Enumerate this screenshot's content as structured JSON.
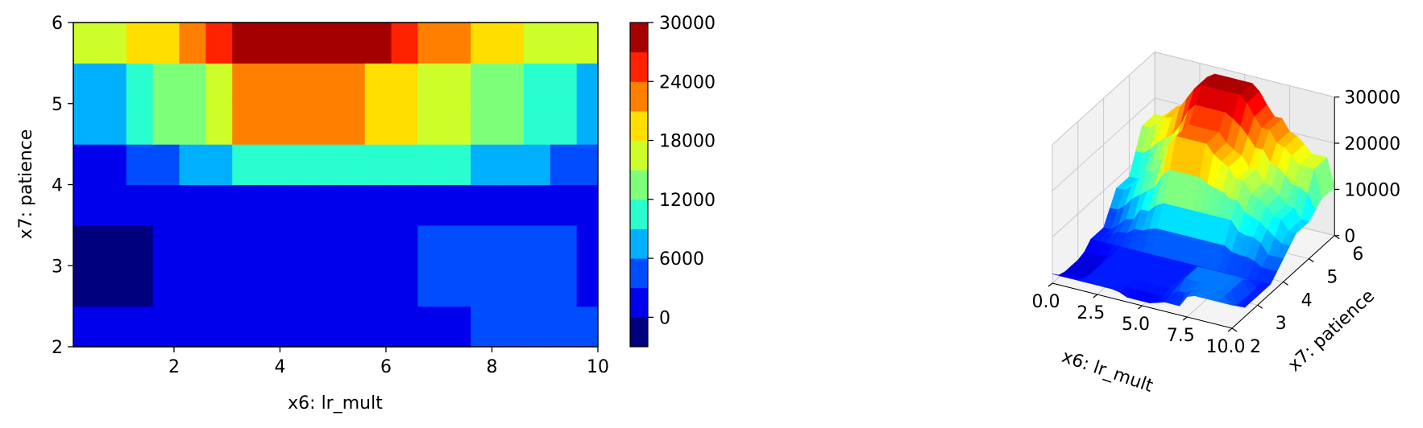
{
  "chart_data": [
    {
      "type": "heatmap",
      "subtype": "filled-contour",
      "xlabel": "x6: lr_mult",
      "ylabel": "x7: patience",
      "xlim": [
        0.1,
        10
      ],
      "ylim": [
        2,
        6
      ],
      "xticks": [
        "2",
        "4",
        "6",
        "8",
        "10"
      ],
      "yticks": [
        "2",
        "3",
        "4",
        "5",
        "6"
      ],
      "colormap": "jet",
      "colorbar": {
        "levels": [
          -3000,
          0,
          3000,
          6000,
          9000,
          12000,
          15000,
          18000,
          21000,
          24000,
          27000,
          30000
        ],
        "colors": [
          "#00007f",
          "#0000ed",
          "#004cff",
          "#00b0ff",
          "#29ffce",
          "#7dff7a",
          "#cefe29",
          "#ffde00",
          "#ff7f00",
          "#ff2100",
          "#a50000"
        ],
        "ticks": [
          "0",
          "6000",
          "12000",
          "18000",
          "24000",
          "30000"
        ]
      },
      "x": [
        0.1,
        0.6,
        1.1,
        1.6,
        2.1,
        2.6,
        3.1,
        3.6,
        4.1,
        4.6,
        5.1,
        5.6,
        6.1,
        6.6,
        7.1,
        7.6,
        8.1,
        8.6,
        9.1,
        9.6,
        10
      ],
      "y": [
        2,
        2.5,
        3,
        3.5,
        4,
        4.5,
        5,
        5.5,
        6
      ],
      "z": [
        [
          2000,
          2000,
          2000,
          2000,
          2000,
          2000,
          2000,
          2000,
          1000,
          1000,
          1000,
          1000,
          2000,
          2000,
          2000,
          5000,
          5000,
          5000,
          5000,
          5000,
          5000
        ],
        [
          -1000,
          -1000,
          -1000,
          2000,
          2000,
          2000,
          2000,
          2000,
          2000,
          2000,
          2000,
          2000,
          2000,
          5000,
          5000,
          5000,
          5000,
          5000,
          5000,
          2000,
          2000
        ],
        [
          -1000,
          -1000,
          -1000,
          2000,
          2000,
          2000,
          2000,
          2000,
          2000,
          2000,
          2000,
          2000,
          2000,
          5000,
          5000,
          5000,
          5000,
          5000,
          5000,
          2000,
          2000
        ],
        [
          2000,
          2000,
          2000,
          2000,
          2000,
          2000,
          2000,
          2000,
          2000,
          2000,
          2000,
          2000,
          2000,
          2000,
          2000,
          2000,
          2000,
          2000,
          2000,
          2000,
          2000
        ],
        [
          2000,
          2000,
          5000,
          5000,
          8000,
          8000,
          10500,
          10500,
          10500,
          10500,
          10500,
          10500,
          10500,
          10500,
          10500,
          8000,
          8000,
          8000,
          5000,
          5000,
          5000
        ],
        [
          8000,
          8000,
          10500,
          13500,
          13500,
          16500,
          22500,
          22500,
          22500,
          22500,
          22500,
          19500,
          19500,
          16500,
          16500,
          13500,
          13500,
          10500,
          10500,
          8000,
          8000
        ],
        [
          8000,
          8000,
          10500,
          13500,
          13500,
          16500,
          22500,
          22500,
          22500,
          22500,
          22500,
          19500,
          19500,
          16500,
          16500,
          13500,
          13500,
          10500,
          10500,
          8000,
          8000
        ],
        [
          16500,
          16500,
          19500,
          19500,
          22500,
          25500,
          28500,
          28500,
          28500,
          28500,
          28500,
          28500,
          25500,
          22500,
          22500,
          19500,
          19500,
          16500,
          16500,
          16500,
          10500
        ],
        [
          16500,
          16500,
          19500,
          19500,
          22500,
          25500,
          28500,
          28500,
          28500,
          28500,
          28500,
          28500,
          25500,
          22500,
          22500,
          19500,
          19500,
          16500,
          16500,
          16500,
          10500
        ]
      ]
    },
    {
      "type": "surface3d",
      "xlabel": "x6: lr_mult",
      "ylabel": "x7: patience",
      "zlabel": "",
      "xlim": [
        0,
        10
      ],
      "ylim": [
        2,
        6
      ],
      "zlim": [
        0,
        30000
      ],
      "xticks": [
        "0.0",
        "2.5",
        "5.0",
        "7.5",
        "10.0"
      ],
      "yticks": [
        "2",
        "3",
        "4",
        "5",
        "6"
      ],
      "zticks": [
        "0",
        "10000",
        "20000",
        "30000"
      ],
      "colormap": "jet",
      "grid": true,
      "surface": "same data as filled contour"
    }
  ]
}
